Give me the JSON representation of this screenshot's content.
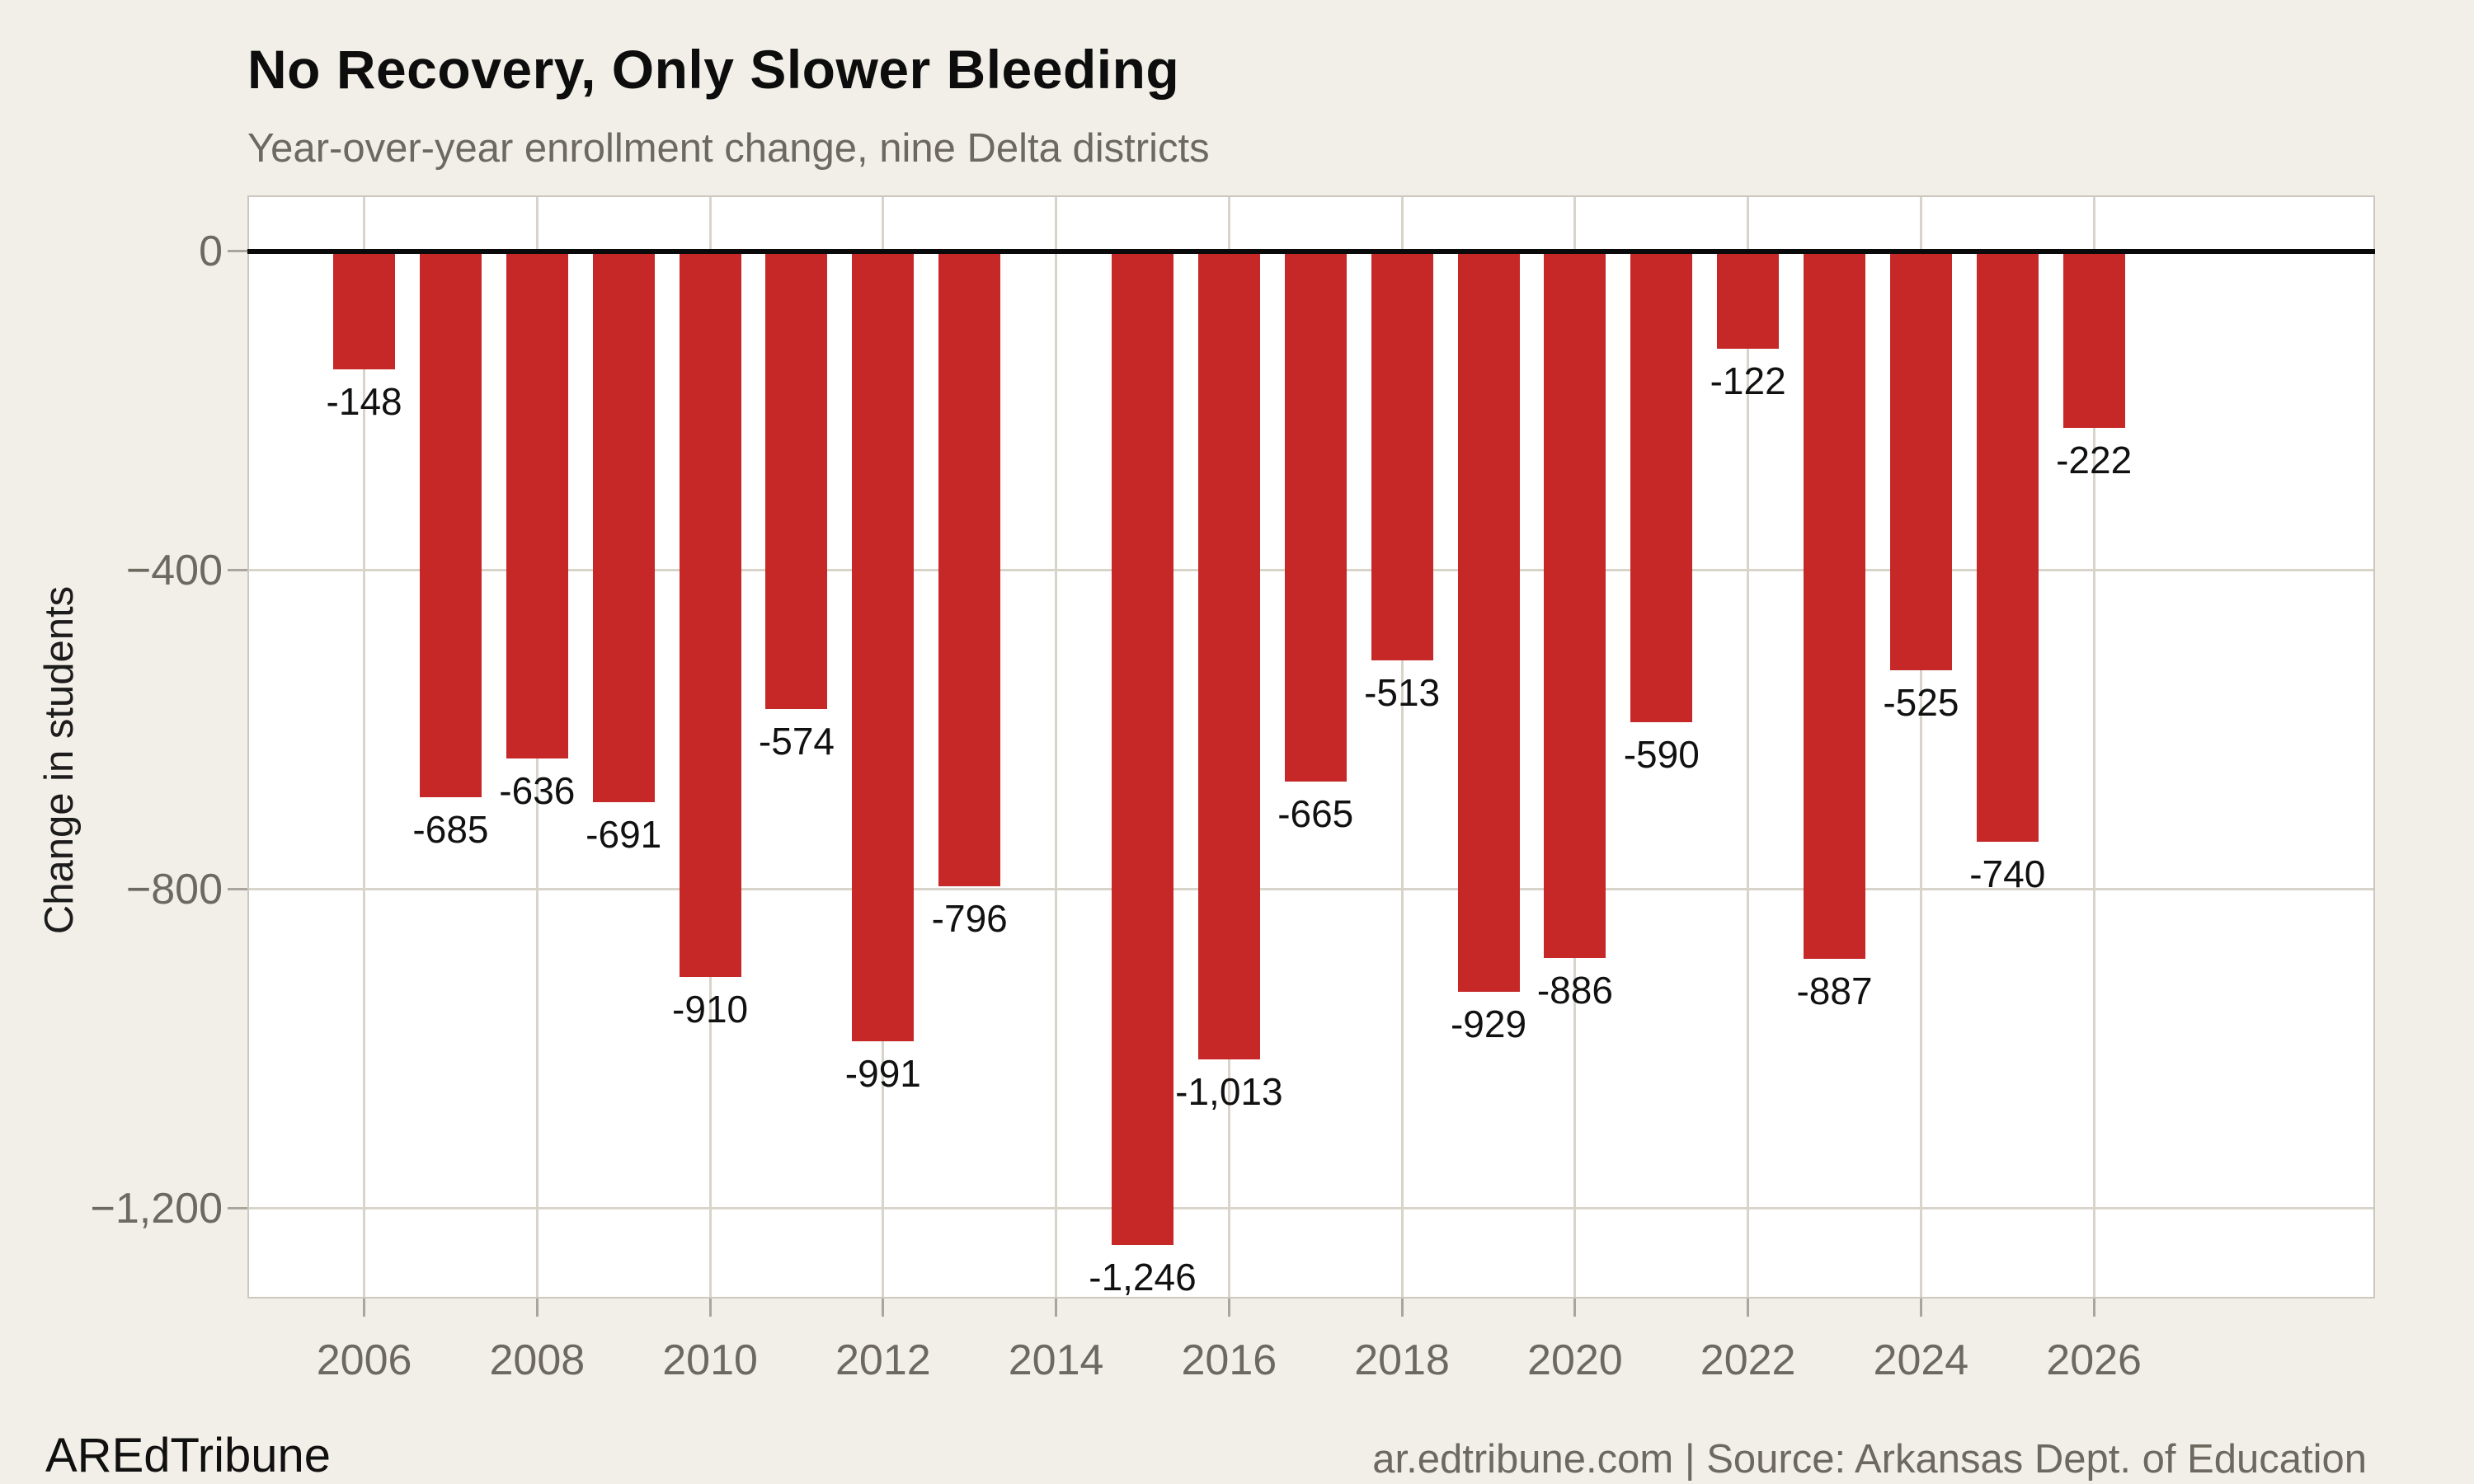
{
  "header": {
    "title": "No Recovery, Only Slower Bleeding",
    "subtitle": "Year-over-year enrollment change, nine Delta districts"
  },
  "footer": {
    "brand": "AREdTribune",
    "attribution": "ar.edtribune.com | Source: Arkansas Dept. of Education"
  },
  "colors": {
    "page_background": "#f2efe8",
    "plot_background": "#ffffff",
    "bar": "#c62828",
    "zero_line": "#0a0a0a",
    "gridline": "#d8d4ca",
    "axis_text": "#6e6960",
    "label_text": "#111111"
  },
  "chart_data": {
    "type": "bar",
    "title": "No Recovery, Only Slower Bleeding",
    "subtitle": "Year-over-year enrollment change, nine Delta districts",
    "xlabel": "",
    "ylabel": "Change in students",
    "categories": [
      2006,
      2007,
      2008,
      2009,
      2010,
      2011,
      2012,
      2013,
      2015,
      2016,
      2017,
      2018,
      2019,
      2020,
      2021,
      2022,
      2023,
      2024,
      2025,
      2026
    ],
    "values": [
      -148,
      -685,
      -636,
      -691,
      -910,
      -574,
      -991,
      -796,
      -1246,
      -1013,
      -665,
      -513,
      -929,
      -886,
      -590,
      -122,
      -887,
      -525,
      -740,
      -222
    ],
    "bar_labels": [
      "-148",
      "-685",
      "-636",
      "-691",
      "-910",
      "-574",
      "-991",
      "-796",
      "-1,246",
      "-1,013",
      "-665",
      "-513",
      "-929",
      "-886",
      "-590",
      "-122",
      "-887",
      "-525",
      "-740",
      "-222"
    ],
    "x_ticks": [
      "2006",
      "2008",
      "2010",
      "2012",
      "2014",
      "2016",
      "2018",
      "2020",
      "2022",
      "2024",
      "2026"
    ],
    "y_ticks": [
      {
        "value": 0,
        "label": "0"
      },
      {
        "value": -400,
        "label": "−400"
      },
      {
        "value": -800,
        "label": "−800"
      },
      {
        "value": -1200,
        "label": "−1,200"
      }
    ],
    "xlim": [
      2004.65,
      2029.25
    ],
    "ylim": [
      -1313,
      70
    ],
    "grid": true,
    "legend": "none",
    "bar_color": "#c62828"
  }
}
